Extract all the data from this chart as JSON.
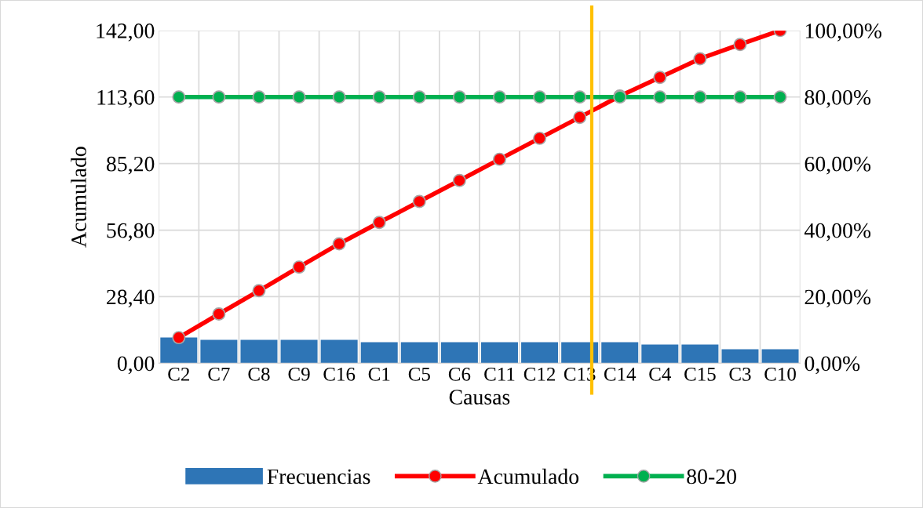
{
  "chart_data": {
    "type": "bar",
    "xlabel": "Causas",
    "ylabel": "Acumulado",
    "categories": [
      "C2",
      "C7",
      "C8",
      "C9",
      "C16",
      "C1",
      "C5",
      "C6",
      "C11",
      "C12",
      "C13",
      "C14",
      "C4",
      "C15",
      "C3",
      "C10"
    ],
    "series": [
      {
        "name": "Frecuencias",
        "color": "#2e75b6",
        "values": [
          11,
          10,
          10,
          10,
          10,
          9,
          9,
          9,
          9,
          9,
          9,
          9,
          8,
          8,
          6,
          6
        ]
      },
      {
        "name": "Acumulado",
        "type": "line",
        "axis": "y2",
        "color": "#ff0000",
        "values": [
          7.7,
          14.8,
          21.8,
          28.9,
          35.9,
          42.3,
          48.6,
          54.9,
          61.3,
          67.6,
          73.9,
          80.3,
          85.9,
          91.5,
          95.8,
          100
        ]
      },
      {
        "name": "80-20",
        "type": "line",
        "axis": "y2",
        "color": "#00b050",
        "values": [
          80,
          80,
          80,
          80,
          80,
          80,
          80,
          80,
          80,
          80,
          80,
          80,
          80,
          80,
          80,
          80
        ]
      }
    ],
    "ylim": [
      0,
      142
    ],
    "yticks": [
      {
        "value": 0,
        "label": "0,00"
      },
      {
        "value": 28.4,
        "label": "28,40"
      },
      {
        "value": 56.8,
        "label": "56,80"
      },
      {
        "value": 85.2,
        "label": "85,20"
      },
      {
        "value": 113.6,
        "label": "113,60"
      },
      {
        "value": 142,
        "label": "142,00"
      }
    ],
    "y2lim": [
      0,
      100
    ],
    "y2ticks": [
      {
        "value": 0,
        "label": "0,00%"
      },
      {
        "value": 20,
        "label": "20,00%"
      },
      {
        "value": 40,
        "label": "40,00%"
      },
      {
        "value": 60,
        "label": "60,00%"
      },
      {
        "value": 80,
        "label": "80,00%"
      },
      {
        "value": 100,
        "label": "100,00%"
      }
    ],
    "ref_lines": [
      {
        "axis": "x",
        "value": "C13",
        "color": "#ffc000"
      }
    ],
    "marker": "circle",
    "grid": true,
    "legend": "bottom"
  }
}
